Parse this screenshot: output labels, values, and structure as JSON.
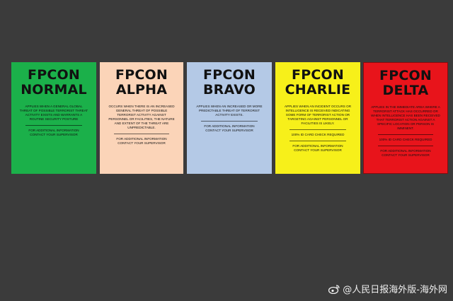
{
  "cards": [
    {
      "title_line1": "FPCON",
      "title_line2": "NORMAL",
      "description": "APPLIES WHEN A GENERAL GLOBAL THREAT OF POSSIBLE TERRORIST THREAT ACTIVITY EXISTS AND WARRANTS A ROUTINE SECURITY POSTURE",
      "extra": "",
      "contact_line1": "FOR ADDITIONAL INFORMATION",
      "contact_line2": "CONTACT YOUR SUPERVISOR",
      "bg": "#1bb04a"
    },
    {
      "title_line1": "FPCON",
      "title_line2": "ALPHA",
      "description": "OCCURS WHEN THERE IS AN INCREASED GENERAL THREAT OF POSSIBLE TERRORIST ACTIVITY AGAINST PERSONNEL OR FACILITIES, THE NATURE AND EXTENT OF THE THREAT ARE UNPREDICTABLE.",
      "extra": "",
      "contact_line1": "FOR ADDITIONAL INFORMATION",
      "contact_line2": "CONTACT YOUR SUPERVISOR",
      "bg": "#fbd4b8"
    },
    {
      "title_line1": "FPCON",
      "title_line2": "BRAVO",
      "description": "APPLIES WHEN AN INCREASED OR MORE PREDICTABLE THREAT OF TERRORIST ACTIVITY EXISTS.",
      "extra": "",
      "contact_line1": "FOR ADDITIONAL INFORMATION",
      "contact_line2": "CONTACT YOUR SUPERVISOR",
      "bg": "#b4c9e6"
    },
    {
      "title_line1": "FPCON",
      "title_line2": "CHARLIE",
      "description": "APPLIES WHEN AN INCIDENT OCCURS OR INTELLIGENCE IS RECEIVED INDICATING SOME FORM OF TERRORIST ACTION OR TARGETING AGAINST PERSONNEL OR FACILITIES IS LIKELY.",
      "extra": "100% ID CARD CHECK REQUIRED",
      "contact_line1": "FOR ADDITIONAL INFORMATION",
      "contact_line2": "CONTACT YOUR SUPERVISOR",
      "bg": "#f7f01a"
    },
    {
      "title_line1": "FPCON",
      "title_line2": "DELTA",
      "description": "APPLIES IN THE IMMEDIATE AREA WHERE A TERRORIST ATTACK HAS OCCURRED OR WHEN INTELLIGENCE HAS BEEN RECEIVED THAT TERRORIST ACTION AGAINST A SPECIFIC LOCATION OR PERSON IS IMMINENT.",
      "extra": "100% ID CARD CHECK REQUIRED",
      "contact_line1": "FOR ADDITIONAL INFORMATION",
      "contact_line2": "CONTACT YOUR SUPERVISOR",
      "bg": "#e8141b"
    }
  ],
  "watermark": {
    "text": "@人民日报海外版-海外网",
    "icon": "weibo-icon"
  }
}
